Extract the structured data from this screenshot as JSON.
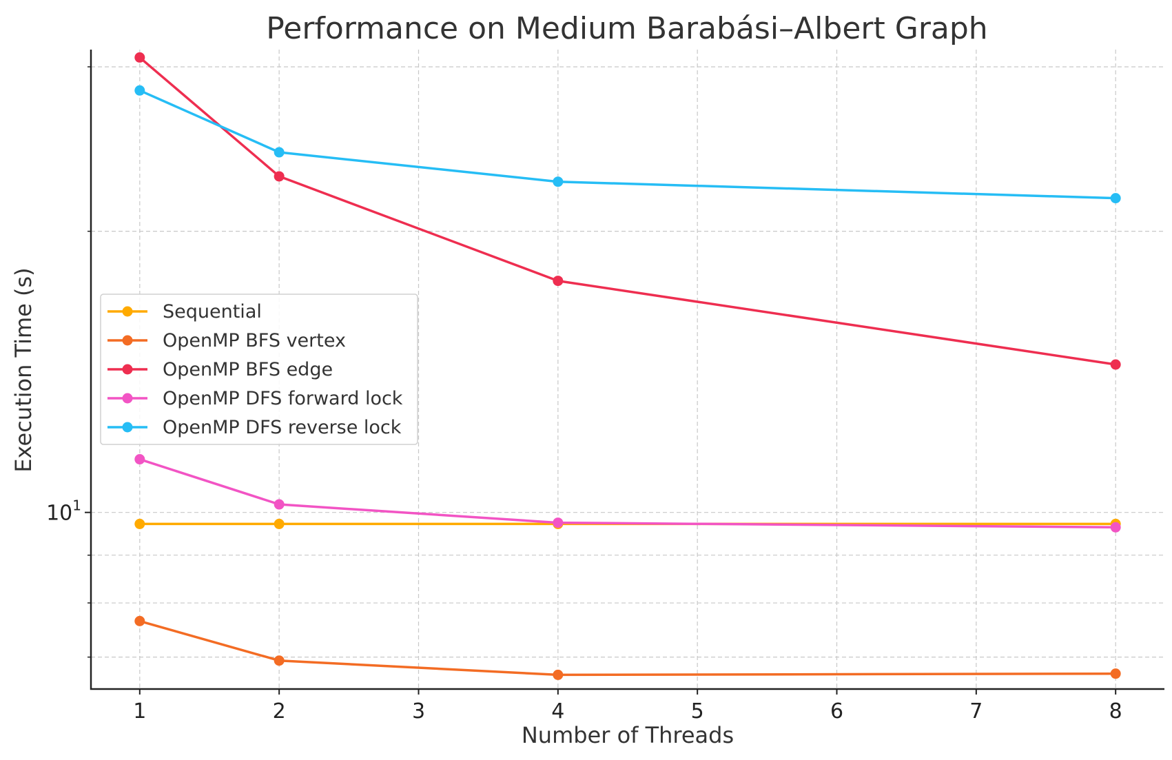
{
  "chart_data": {
    "type": "line",
    "title": "Performance on Medium Barabási–Albert Graph",
    "xlabel": "Number of Threads",
    "ylabel": "Execution Time (s)",
    "x": [
      1,
      2,
      4,
      8
    ],
    "x_ticks": [
      "1",
      "2",
      "3",
      "4",
      "5",
      "6",
      "7",
      "8"
    ],
    "x_tick_values": [
      1,
      2,
      3,
      4,
      5,
      6,
      7,
      8
    ],
    "xlim": [
      0.65,
      8.35
    ],
    "y_scale": "log",
    "ylim": [
      6.47,
      31.3
    ],
    "y_major_tick": {
      "base": "10",
      "exponent": "1",
      "value": 10
    },
    "y_minor_tick_values": [
      7,
      8,
      9,
      20,
      30
    ],
    "grid": true,
    "legend_position": "center-left",
    "series": [
      {
        "name": "Sequential",
        "color": "#FFAA00",
        "values": [
          9.72,
          9.72,
          9.72,
          9.72
        ]
      },
      {
        "name": "OpenMP BFS vertex",
        "color": "#F36C24",
        "values": [
          7.65,
          6.94,
          6.7,
          6.72
        ]
      },
      {
        "name": "OpenMP BFS edge",
        "color": "#EE2E50",
        "values": [
          30.7,
          22.9,
          17.7,
          14.4
        ]
      },
      {
        "name": "OpenMP DFS forward lock",
        "color": "#F254C4",
        "values": [
          11.4,
          10.2,
          9.75,
          9.64
        ]
      },
      {
        "name": "OpenMP DFS reverse lock",
        "color": "#26BDF5",
        "values": [
          28.3,
          24.3,
          22.6,
          21.7
        ]
      }
    ]
  }
}
